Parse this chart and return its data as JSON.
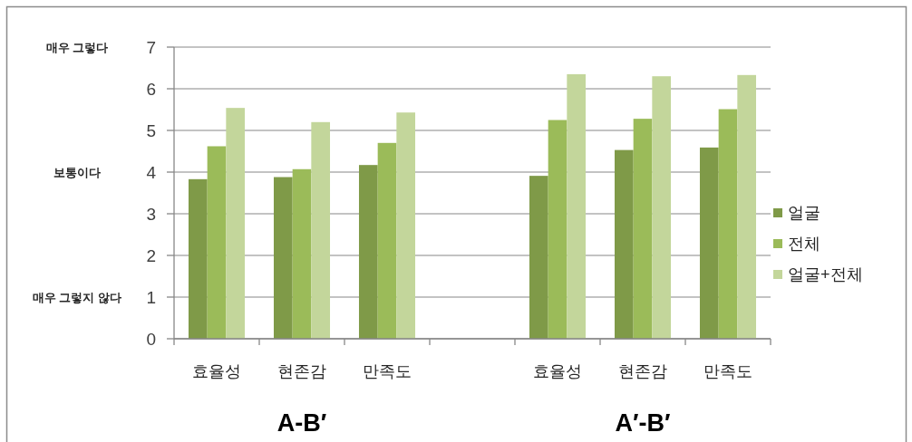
{
  "chart_data": {
    "type": "bar",
    "categories": [
      "효율성",
      "현존감",
      "만족도",
      null,
      "효율성",
      "현존감",
      "만족도"
    ],
    "series": [
      {
        "name": "얼굴",
        "color": "#7f9a48",
        "values": [
          3.83,
          3.88,
          4.17,
          null,
          3.91,
          4.53,
          4.59
        ]
      },
      {
        "name": "전체",
        "color": "#9bbb59",
        "values": [
          4.62,
          4.07,
          4.7,
          null,
          5.25,
          5.28,
          5.51
        ]
      },
      {
        "name": "얼굴+전체",
        "color": "#c3d69b",
        "values": [
          5.54,
          5.2,
          5.43,
          null,
          6.35,
          6.3,
          6.33
        ]
      }
    ],
    "ylim": [
      0,
      7
    ],
    "yticks": [
      0,
      1,
      2,
      3,
      4,
      5,
      6,
      7
    ],
    "annotations": [
      "매우 그렇다",
      "보통이다",
      "매우 그렇지 않다",
      "A-B′",
      "A′-B′"
    ],
    "grid": "y",
    "legend": "right"
  }
}
